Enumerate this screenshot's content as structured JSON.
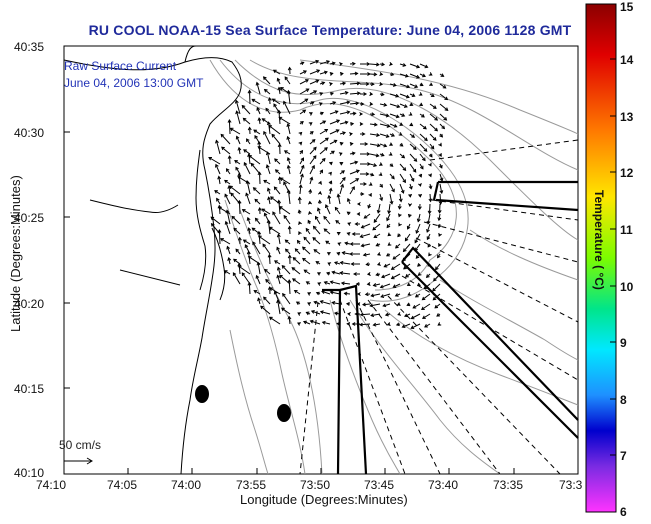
{
  "title": "RU COOL  NOAA-15  Sea Surface Temperature:  June 04, 2006 1128 GMT",
  "annotation": {
    "line1": "Raw Surface Current",
    "line2": "June 04, 2006 13:00 GMT"
  },
  "scale_label": "50 cm/s",
  "axes": {
    "xlabel": "Longitude (Degrees:Minutes)",
    "ylabel": "Latitude (Degrees:Minutes)",
    "xticks": [
      "74:10",
      "74:05",
      "74:00",
      "73:55",
      "73:50",
      "73:45",
      "73:40",
      "73:35",
      "73:3"
    ],
    "yticks": [
      "40:35",
      "40:30",
      "40:25",
      "40:20",
      "40:15",
      "40:10"
    ]
  },
  "colorbar": {
    "label": "Temperature ( °C)",
    "ticks": [
      "15",
      "14",
      "13",
      "12",
      "11",
      "10",
      "9",
      "8",
      "7",
      "6"
    ],
    "colors": [
      "#8b0000",
      "#ff0000",
      "#ff8c00",
      "#ffff00",
      "#7cfc00",
      "#00ff7f",
      "#00ffff",
      "#1e90ff",
      "#0000cd",
      "#8a2be2",
      "#ff00ff"
    ]
  }
}
